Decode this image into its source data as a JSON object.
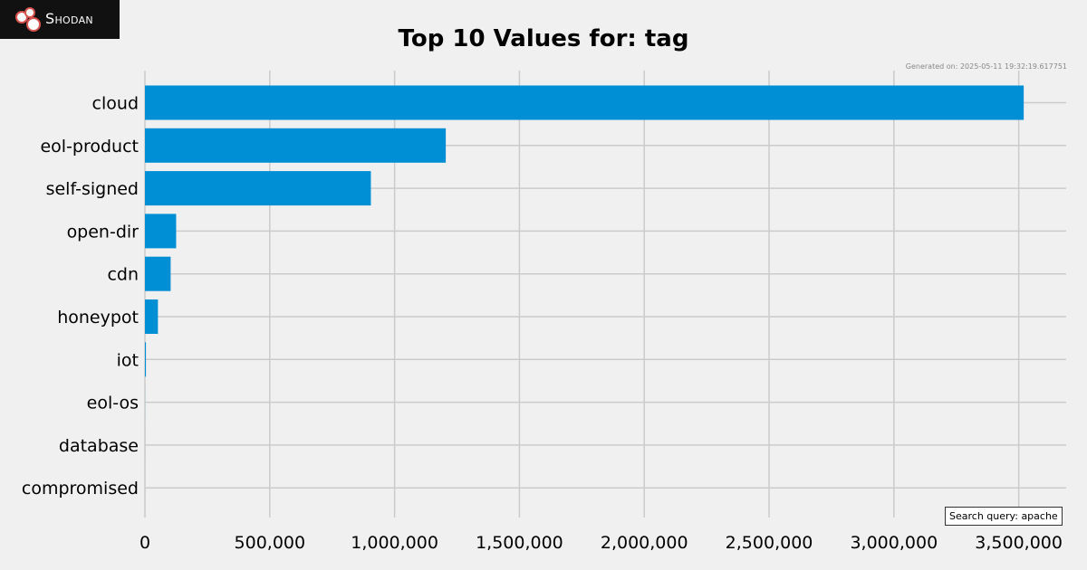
{
  "brand": {
    "name": "Shodan",
    "logo_text": "Shodan"
  },
  "generated_text": "Generated on: 2025-05-11 19:32:19.617751",
  "search_query_text": "Search query: apache",
  "chart_data": {
    "type": "bar",
    "orientation": "horizontal",
    "title": "Top 10 Values for: tag",
    "xlabel": "",
    "ylabel": "",
    "categories": [
      "cloud",
      "eol-product",
      "self-signed",
      "open-dir",
      "cdn",
      "honeypot",
      "iot",
      "eol-os",
      "database",
      "compromised"
    ],
    "values": [
      3520000,
      1205000,
      905000,
      125000,
      103000,
      52000,
      4000,
      200,
      100,
      50
    ],
    "xlim": [
      0,
      3690000
    ],
    "xticks": [
      0,
      500000,
      1000000,
      1500000,
      2000000,
      2500000,
      3000000,
      3500000
    ],
    "xtick_labels": [
      "0",
      "500,000",
      "1,000,000",
      "1,500,000",
      "2,000,000",
      "2,500,000",
      "3,000,000",
      "3,500,000"
    ],
    "grid": true,
    "bar_color": "#008fd5",
    "grid_color": "#cbcbcb",
    "background_color": "#f0f0f0"
  }
}
